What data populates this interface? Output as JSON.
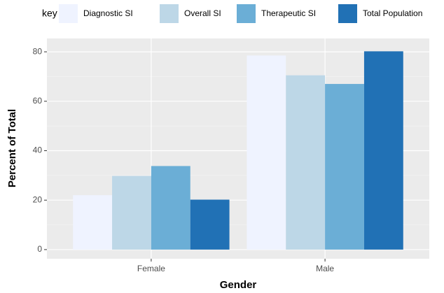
{
  "chart_data": {
    "type": "bar",
    "legend_title": "key",
    "x_label": "Gender",
    "y_label": "Percent of Total",
    "categories": [
      "Female",
      "Male"
    ],
    "series": [
      {
        "name": "Diagnostic SI",
        "color": "#eff3ff",
        "values": [
          22,
          78.5
        ]
      },
      {
        "name": "Overall SI",
        "color": "#bdd7e7",
        "values": [
          29.8,
          70.5
        ]
      },
      {
        "name": "Therapeutic SI",
        "color": "#6baed6",
        "values": [
          33.8,
          67
        ]
      },
      {
        "name": "Total Population",
        "color": "#2171b5",
        "values": [
          20.2,
          80.2
        ]
      }
    ],
    "ylim": [
      -3.7,
      85.4
    ],
    "yticks": [
      0,
      20,
      40,
      60,
      80
    ],
    "grid": true,
    "legend_position": "top"
  }
}
